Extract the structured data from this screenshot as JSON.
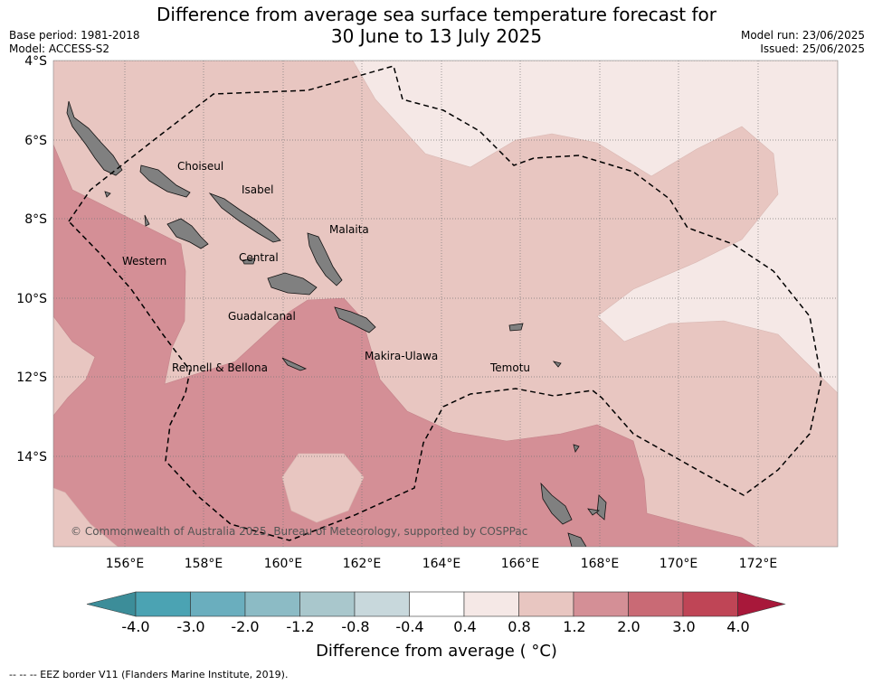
{
  "title": {
    "line1": "Difference from average sea surface temperature forecast for",
    "line2": "30 June to 13 July 2025"
  },
  "meta": {
    "base_period": "Base period: 1981-2018",
    "model": "Model: ACCESS-S2",
    "model_run": "Model run: 23/06/2025",
    "issued": "Issued: 25/06/2025"
  },
  "map": {
    "lat_labels": [
      "4°S",
      "6°S",
      "8°S",
      "10°S",
      "12°S",
      "14°S"
    ],
    "lon_labels": [
      "156°E",
      "158°E",
      "160°E",
      "162°E",
      "164°E",
      "166°E",
      "168°E",
      "170°E",
      "172°E"
    ],
    "island_labels": [
      "Choiseul",
      "Isabel",
      "Malaita",
      "Western",
      "Central",
      "Guadalcanal",
      "Rennell & Bellona",
      "Makira-Ulawa",
      "Temotu"
    ],
    "copyright": "© Commonwealth of Australia 2025, Bureau of Meteorology, supported by COSPPac",
    "colors": {
      "band_0_4_0_8": "#f5e8e6",
      "band_0_8_1_2": "#e8c6c1",
      "band_1_2_2_0": "#d48f96",
      "land": "#808080",
      "eez": "#000000"
    }
  },
  "colorbar": {
    "ticks": [
      "-4.0",
      "-3.0",
      "-2.0",
      "-1.2",
      "-0.8",
      "-0.4",
      "0.4",
      "0.8",
      "1.2",
      "2.0",
      "3.0",
      "4.0"
    ],
    "colors": [
      "#3c8d99",
      "#4ba3b3",
      "#6aaebe",
      "#8cbbc5",
      "#a9c7cc",
      "#c8d8dc",
      "#ffffff",
      "#f5e8e6",
      "#e8c6c1",
      "#d48f96",
      "#c96a75",
      "#bf4556",
      "#a8183a"
    ],
    "label": "Difference from average ( °C)"
  },
  "footer": {
    "eez_note": "--  --  -- EEZ border V11 (Flanders Marine Institute, 2019)."
  }
}
